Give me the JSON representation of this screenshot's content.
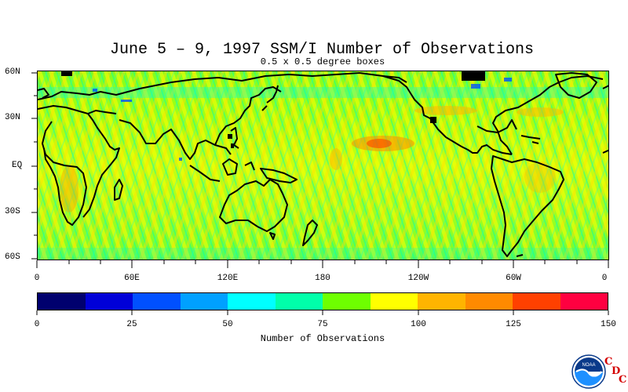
{
  "title": "June 5 – 9, 1997 SSM/I Number of Observations",
  "subtitle": "0.5 x 0.5 degree boxes",
  "lat_labels": [
    "60N",
    "30N",
    "EQ",
    "30S",
    "60S"
  ],
  "lon_labels": [
    "0",
    "60E",
    "120E",
    "180",
    "120W",
    "60W",
    "0"
  ],
  "colorbar": {
    "title": "Number of Observations",
    "tick_labels": [
      "0",
      "25",
      "50",
      "75",
      "100",
      "125",
      "150"
    ],
    "colors": [
      "#00006e",
      "#0000d8",
      "#0050ff",
      "#00a0ff",
      "#00ffff",
      "#00ffaa",
      "#6eff00",
      "#ffff00",
      "#ffb400",
      "#ff8a00",
      "#ff4000",
      "#ff0040"
    ]
  },
  "logo": {
    "icon": "noaa-logo-icon",
    "text": "NOAA",
    "cdc_letters": [
      "C",
      "D",
      "C"
    ]
  }
}
